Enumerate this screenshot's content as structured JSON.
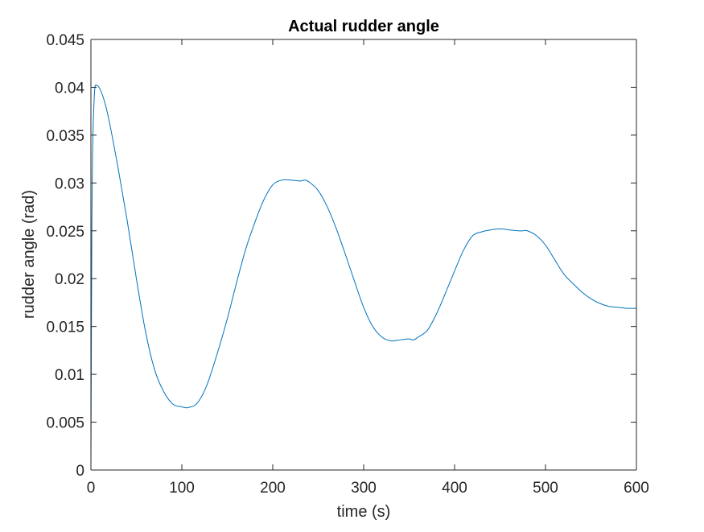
{
  "chart_data": {
    "type": "line",
    "title": "Actual rudder angle",
    "xlabel": "time (s)",
    "ylabel": "rudder angle (rad)",
    "xlim": [
      0,
      600
    ],
    "ylim": [
      0,
      0.045
    ],
    "grid": false,
    "legend": "none",
    "x_ticks": [
      "0",
      "100",
      "200",
      "300",
      "400",
      "500",
      "600"
    ],
    "y_ticks": [
      "0",
      "0.005",
      "0.01",
      "0.015",
      "0.02",
      "0.025",
      "0.03",
      "0.035",
      "0.04",
      "0.045"
    ],
    "colors": {
      "series": "#0072BD",
      "axes": "#262626"
    },
    "series": [
      {
        "x": [
          0,
          1,
          2,
          4,
          6,
          10,
          15,
          20,
          30,
          40,
          50,
          60,
          70,
          80,
          90,
          100,
          105,
          110,
          115,
          120,
          125,
          130,
          140,
          150,
          160,
          170,
          180,
          190,
          200,
          210,
          220,
          230,
          235,
          240,
          250,
          260,
          270,
          280,
          290,
          300,
          310,
          320,
          330,
          340,
          350,
          355,
          360,
          370,
          380,
          390,
          400,
          410,
          420,
          430,
          440,
          450,
          460,
          470,
          475,
          480,
          490,
          500,
          510,
          520,
          530,
          540,
          550,
          560,
          570,
          580,
          590,
          600
        ],
        "y": [
          0,
          0.025,
          0.034,
          0.0395,
          0.0402,
          0.0398,
          0.0385,
          0.0365,
          0.0315,
          0.026,
          0.02,
          0.0145,
          0.0105,
          0.0082,
          0.0069,
          0.0066,
          0.0065,
          0.0066,
          0.0068,
          0.0074,
          0.0083,
          0.0095,
          0.0125,
          0.0158,
          0.0195,
          0.023,
          0.0258,
          0.0282,
          0.0298,
          0.0303,
          0.0303,
          0.0302,
          0.0303,
          0.0301,
          0.0292,
          0.0275,
          0.0252,
          0.0225,
          0.0197,
          0.017,
          0.015,
          0.0139,
          0.0135,
          0.0136,
          0.0137,
          0.0136,
          0.0139,
          0.0146,
          0.0163,
          0.0185,
          0.0208,
          0.023,
          0.0245,
          0.0249,
          0.0251,
          0.0252,
          0.0251,
          0.025,
          0.025,
          0.025,
          0.0245,
          0.0235,
          0.022,
          0.0205,
          0.0195,
          0.0186,
          0.0179,
          0.0174,
          0.0171,
          0.017,
          0.0169,
          0.0169
        ]
      }
    ]
  }
}
